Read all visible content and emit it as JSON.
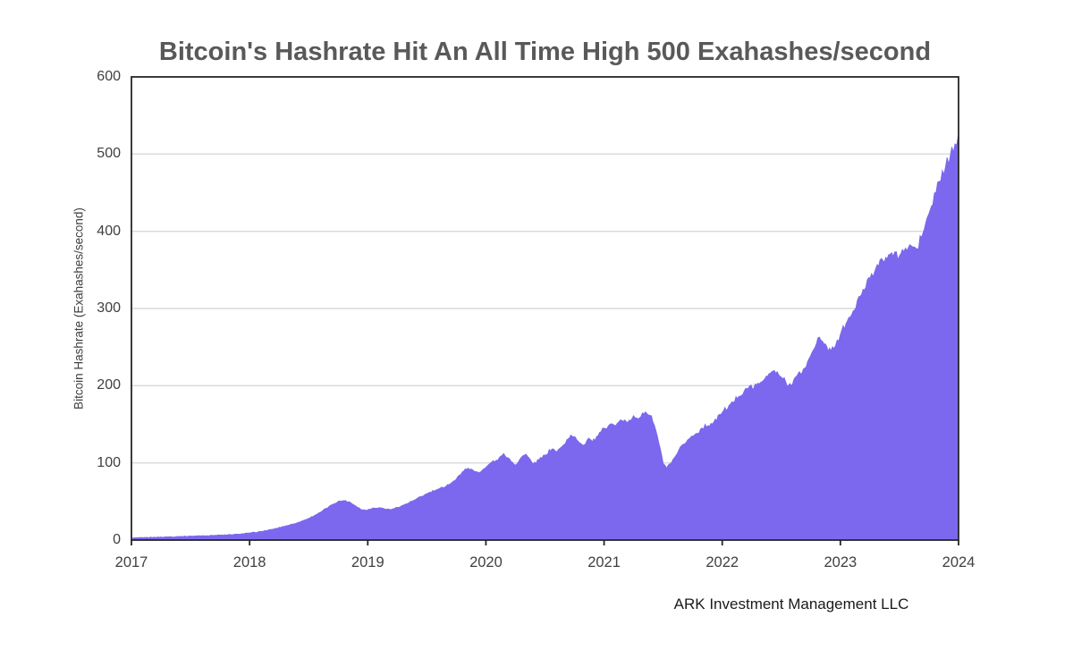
{
  "chart": {
    "title": "Bitcoin's Hashrate Hit An All Time High 500 Exahashes/second",
    "y_axis_label": "Bitcoin Hashrate (Exahashes/second)",
    "attribution": "ARK Investment Management LLC"
  },
  "colors": {
    "area": "#7B68EE",
    "gridline": "#D9D9D9",
    "axis": "#262626",
    "title_text": "#595959",
    "tick_text": "#404040",
    "attribution_text": "#1a1a1a"
  },
  "chart_data": {
    "type": "area",
    "title": "Bitcoin's Hashrate Hit An All Time High 500 Exahashes/second",
    "xlabel": "",
    "ylabel": "Bitcoin Hashrate (Exahashes/second)",
    "x_ticks": [
      2017,
      2018,
      2019,
      2020,
      2021,
      2022,
      2023,
      2024
    ],
    "y_ticks": [
      0,
      100,
      200,
      300,
      400,
      500,
      600
    ],
    "xlim": [
      2017,
      2024
    ],
    "ylim": [
      0,
      600
    ],
    "grid": "horizontal",
    "legend": "none",
    "annotation": "ARK Investment Management LLC",
    "series": [
      {
        "name": "Bitcoin Hashrate (Exahashes/second)",
        "points": [
          [
            2017.0,
            2.5
          ],
          [
            2017.1,
            3.0
          ],
          [
            2017.2,
            3.5
          ],
          [
            2017.3,
            4.0
          ],
          [
            2017.4,
            4.5
          ],
          [
            2017.5,
            5.0
          ],
          [
            2017.6,
            5.5
          ],
          [
            2017.7,
            6.0
          ],
          [
            2017.8,
            6.5
          ],
          [
            2017.9,
            7.5
          ],
          [
            2018.0,
            9.0
          ],
          [
            2018.1,
            11.0
          ],
          [
            2018.2,
            14.0
          ],
          [
            2018.3,
            18.0
          ],
          [
            2018.4,
            22.0
          ],
          [
            2018.5,
            28.0
          ],
          [
            2018.6,
            36.0
          ],
          [
            2018.7,
            46.0
          ],
          [
            2018.75,
            50.0
          ],
          [
            2018.8,
            51.0
          ],
          [
            2018.85,
            49.0
          ],
          [
            2018.9,
            44.0
          ],
          [
            2018.95,
            39.0
          ],
          [
            2019.0,
            39.0
          ],
          [
            2019.05,
            41.5
          ],
          [
            2019.1,
            42.0
          ],
          [
            2019.15,
            40.0
          ],
          [
            2019.2,
            39.5
          ],
          [
            2019.3,
            45.0
          ],
          [
            2019.4,
            52.0
          ],
          [
            2019.5,
            60.0
          ],
          [
            2019.6,
            66.0
          ],
          [
            2019.7,
            73.0
          ],
          [
            2019.75,
            79.0
          ],
          [
            2019.8,
            88.0
          ],
          [
            2019.85,
            93.0
          ],
          [
            2019.9,
            89.0
          ],
          [
            2019.95,
            88.0
          ],
          [
            2020.0,
            94.0
          ],
          [
            2020.05,
            101.0
          ],
          [
            2020.1,
            103.0
          ],
          [
            2020.15,
            112.0
          ],
          [
            2020.2,
            105.0
          ],
          [
            2020.25,
            97.0
          ],
          [
            2020.3,
            107.0
          ],
          [
            2020.34,
            111.0
          ],
          [
            2020.4,
            98.0
          ],
          [
            2020.45,
            104.0
          ],
          [
            2020.5,
            110.0
          ],
          [
            2020.56,
            118.0
          ],
          [
            2020.6,
            114.0
          ],
          [
            2020.65,
            122.0
          ],
          [
            2020.72,
            136.0
          ],
          [
            2020.78,
            128.0
          ],
          [
            2020.83,
            123.0
          ],
          [
            2020.87,
            132.0
          ],
          [
            2020.9,
            127.0
          ],
          [
            2020.95,
            135.0
          ],
          [
            2021.0,
            145.0
          ],
          [
            2021.05,
            150.0
          ],
          [
            2021.1,
            148.0
          ],
          [
            2021.15,
            155.0
          ],
          [
            2021.2,
            152.0
          ],
          [
            2021.25,
            161.0
          ],
          [
            2021.3,
            158.0
          ],
          [
            2021.35,
            166.0
          ],
          [
            2021.4,
            161.0
          ],
          [
            2021.45,
            135.0
          ],
          [
            2021.5,
            99.0
          ],
          [
            2021.53,
            93.0
          ],
          [
            2021.57,
            100.0
          ],
          [
            2021.62,
            112.0
          ],
          [
            2021.67,
            124.0
          ],
          [
            2021.72,
            131.0
          ],
          [
            2021.78,
            138.0
          ],
          [
            2021.83,
            145.0
          ],
          [
            2021.88,
            148.0
          ],
          [
            2021.93,
            153.0
          ],
          [
            2022.0,
            165.0
          ],
          [
            2022.07,
            176.0
          ],
          [
            2022.14,
            186.0
          ],
          [
            2022.21,
            196.0
          ],
          [
            2022.29,
            201.0
          ],
          [
            2022.35,
            207.0
          ],
          [
            2022.43,
            219.0
          ],
          [
            2022.5,
            211.0
          ],
          [
            2022.56,
            200.0
          ],
          [
            2022.63,
            212.0
          ],
          [
            2022.71,
            224.0
          ],
          [
            2022.76,
            243.0
          ],
          [
            2022.81,
            262.0
          ],
          [
            2022.86,
            254.0
          ],
          [
            2022.92,
            245.0
          ],
          [
            2022.96,
            252.0
          ],
          [
            2023.0,
            266.0
          ],
          [
            2023.06,
            284.0
          ],
          [
            2023.12,
            298.0
          ],
          [
            2023.18,
            318.0
          ],
          [
            2023.24,
            340.0
          ],
          [
            2023.3,
            352.0
          ],
          [
            2023.36,
            362.0
          ],
          [
            2023.42,
            370.0
          ],
          [
            2023.46,
            373.0
          ],
          [
            2023.5,
            368.0
          ],
          [
            2023.55,
            378.0
          ],
          [
            2023.6,
            381.0
          ],
          [
            2023.65,
            377.0
          ],
          [
            2023.7,
            398.0
          ],
          [
            2023.77,
            432.0
          ],
          [
            2023.81,
            450.0
          ],
          [
            2023.85,
            465.0
          ],
          [
            2023.89,
            483.0
          ],
          [
            2023.93,
            497.0
          ],
          [
            2023.97,
            513.0
          ],
          [
            2024.0,
            526.0
          ]
        ]
      }
    ]
  }
}
